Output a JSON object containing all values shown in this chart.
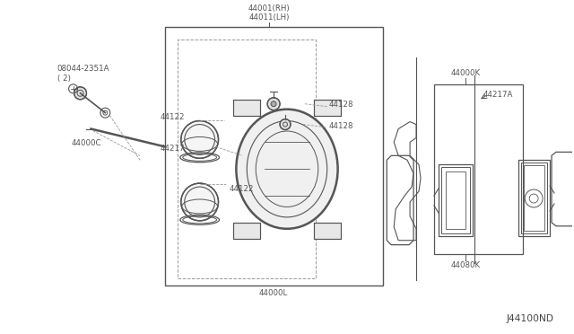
{
  "bg_color": "#ffffff",
  "line_color": "#555555",
  "text_color": "#555555",
  "fig_width": 6.4,
  "fig_height": 3.72,
  "title_label": "J44100ND",
  "labels": {
    "bolt_label": "08044-2351A\n( 2)",
    "44000C": "44000C",
    "44217": "44217",
    "44122_top": "44122",
    "44122_bot": "44122",
    "44001": "44001(RH)\n44011(LH)",
    "44000L": "44000L",
    "44128_top": "44128",
    "44128_bot": "44128",
    "44000K": "44000K",
    "44217A": "44217A",
    "44080K": "44080K"
  }
}
